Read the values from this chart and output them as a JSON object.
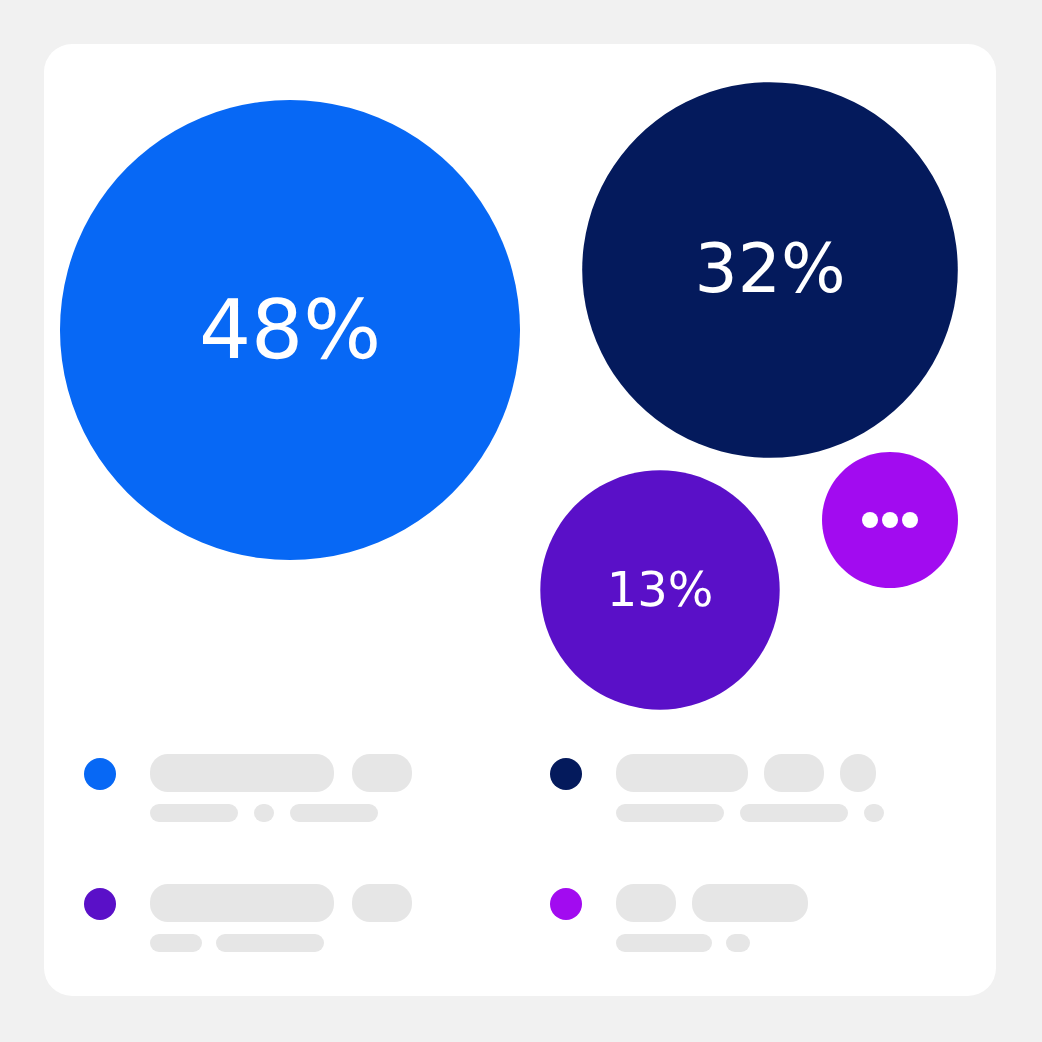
{
  "chart_data": {
    "type": "other",
    "categories": [
      null,
      null,
      null,
      null
    ],
    "values": [
      48,
      32,
      13,
      null
    ],
    "value_labels": [
      "48%",
      "32%",
      "13%",
      null
    ],
    "colors": [
      "#0768f5",
      "#041a5c",
      "#5a10c8",
      "#a20bf0"
    ]
  }
}
